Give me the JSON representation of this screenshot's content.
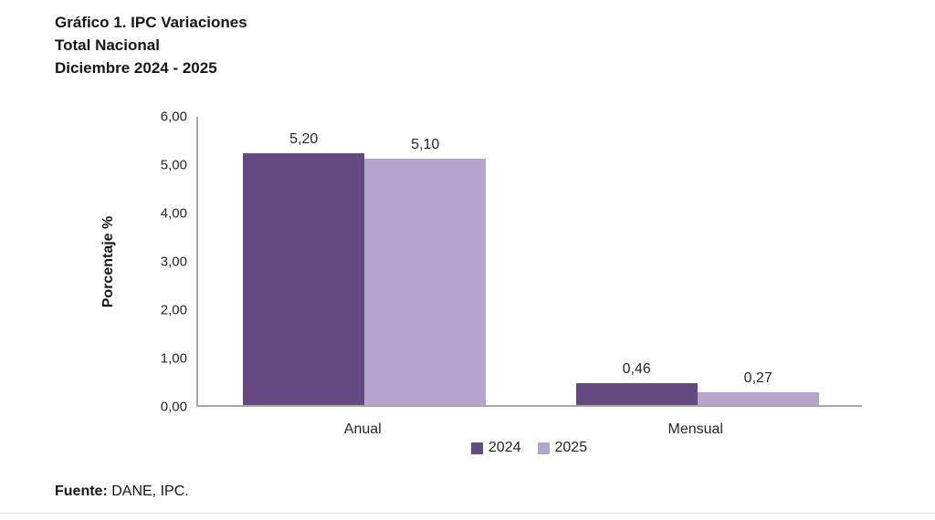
{
  "title": {
    "line1": "Gráfico 1. IPC Variaciones",
    "line2": "Total Nacional",
    "line3": "Diciembre 2024 - 2025"
  },
  "source": {
    "label": "Fuente:",
    "text": " DANE, IPC."
  },
  "colors": {
    "series_2024": "#654A80",
    "series_2025": "#B7A4CE",
    "axis": "#A6A6A6"
  },
  "chart_data": {
    "type": "bar",
    "title": "Gráfico 1. IPC Variaciones — Total Nacional — Diciembre 2024 - 2025",
    "categories": [
      "Anual",
      "Mensual"
    ],
    "series": [
      {
        "name": "2024",
        "color": "#654A80",
        "values": [
          5.2,
          0.46
        ],
        "value_labels": [
          "5,20",
          "0,46"
        ]
      },
      {
        "name": "2025",
        "color": "#B7A4CE",
        "values": [
          5.1,
          0.27
        ],
        "value_labels": [
          "5,10",
          "0,27"
        ]
      }
    ],
    "xlabel": "",
    "ylabel": "Porcentaje %",
    "ylim": [
      0,
      6
    ],
    "yticks": [
      {
        "value": 0,
        "label": "0,00"
      },
      {
        "value": 1,
        "label": "1,00"
      },
      {
        "value": 2,
        "label": "2,00"
      },
      {
        "value": 3,
        "label": "3,00"
      },
      {
        "value": 4,
        "label": "4,00"
      },
      {
        "value": 5,
        "label": "5,00"
      },
      {
        "value": 6,
        "label": "6,00"
      }
    ],
    "grid": false,
    "legend_position": "bottom"
  }
}
